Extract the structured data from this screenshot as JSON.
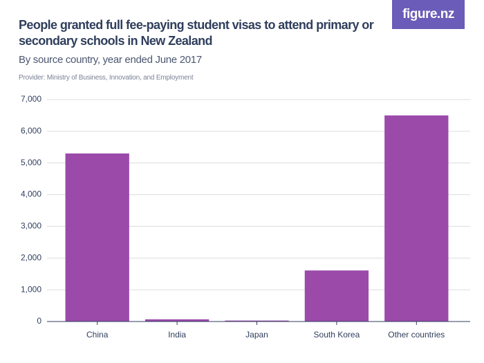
{
  "logo": "figure.nz",
  "chart_data": {
    "type": "bar",
    "title": "People granted full fee-paying student visas to attend primary or secondary schools in New Zealand",
    "subtitle": "By source country, year ended June 2017",
    "provider": "Provider: Ministry of Business, Innovation, and Employment",
    "categories": [
      "China",
      "India",
      "Japan",
      "South Korea",
      "Other countries"
    ],
    "values": [
      5300,
      70,
      30,
      1610,
      6500
    ],
    "color": "#9b4aaa",
    "ylim": [
      0,
      7000
    ],
    "yticks": [
      0,
      {
        "value": 1000,
        "label": "1,000"
      },
      {
        "value": 2000,
        "label": "2,000"
      },
      {
        "value": 3000,
        "label": "3,000"
      },
      {
        "value": 4000,
        "label": "4,000"
      },
      {
        "value": 5000,
        "label": "5,000"
      },
      {
        "value": 6000,
        "label": "6,000"
      },
      {
        "value": 7000,
        "label": "7,000"
      }
    ],
    "grid": true
  }
}
